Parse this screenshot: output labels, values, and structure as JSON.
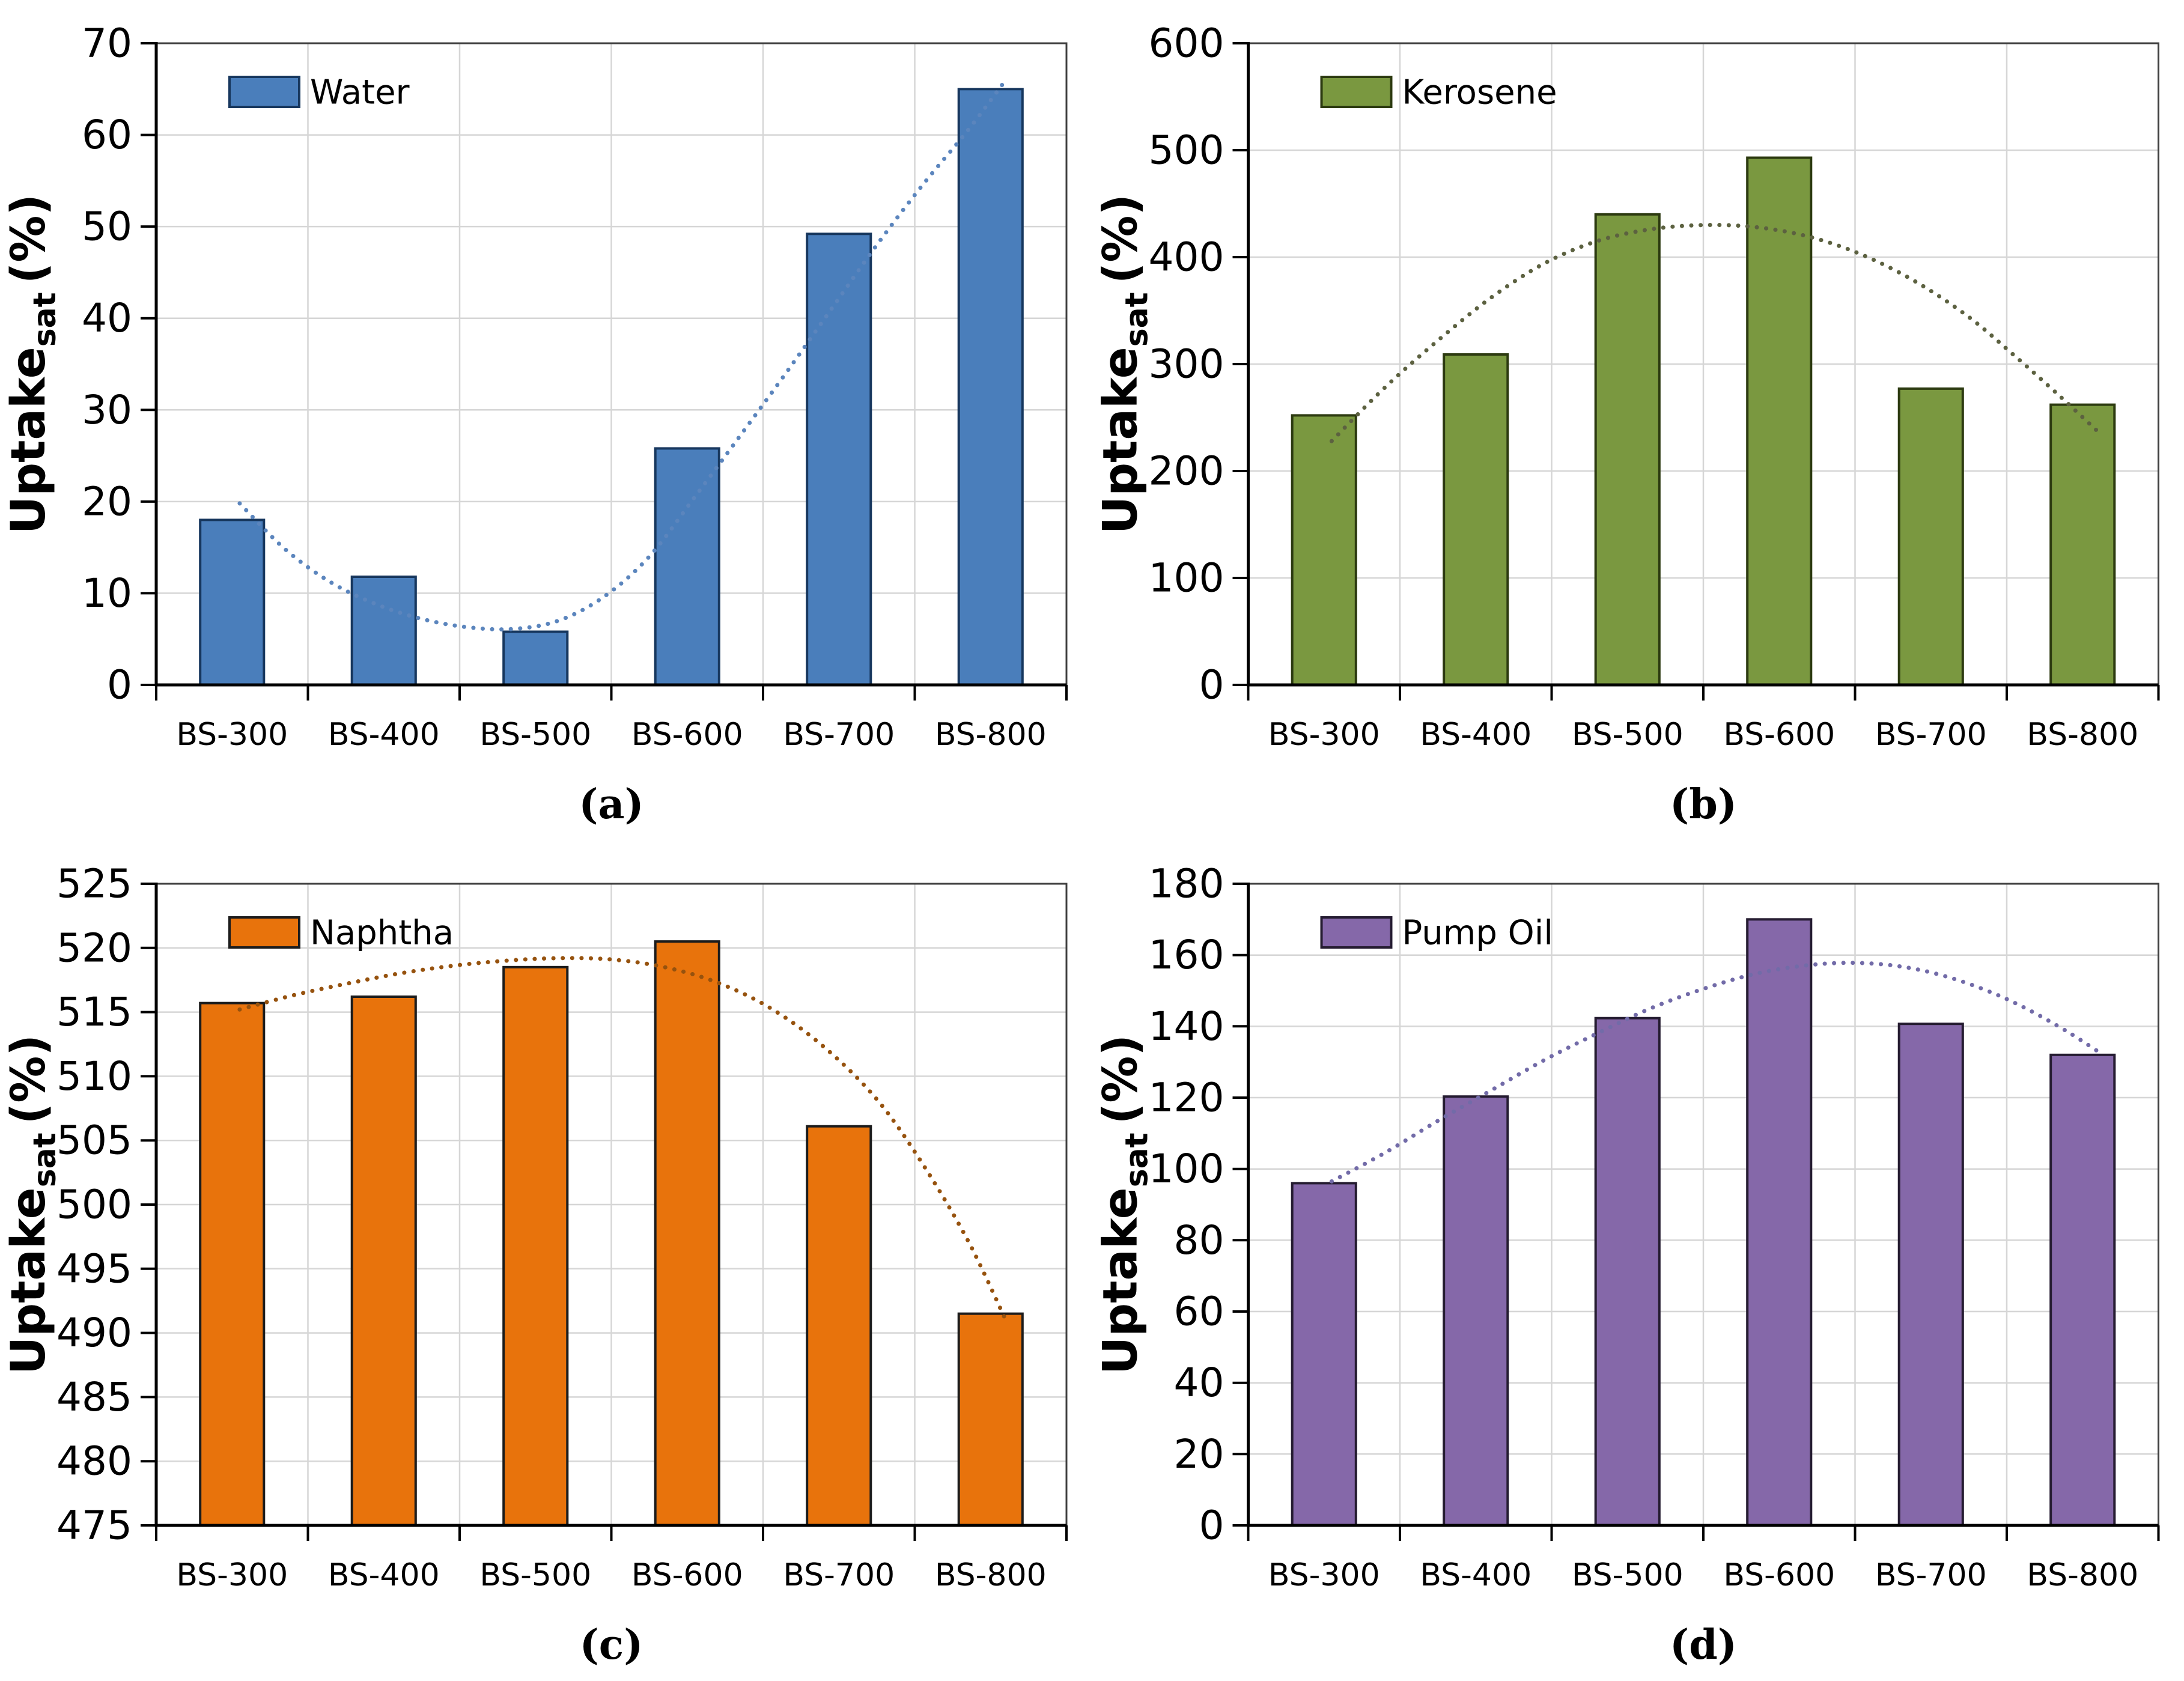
{
  "figure": {
    "background": "#FFFFFF",
    "grid_color": "#D6D6D6",
    "plot_border_color": "#3F3F3F",
    "axis_color": "#000000",
    "ylabel": {
      "word": "Uptake",
      "sub": "sat",
      "unit": "(%)"
    }
  },
  "chart_data": [
    {
      "id": "a",
      "type": "bar",
      "panel_label": "(a)",
      "legend_label": "Water",
      "bar_fill": "#4A7EBB",
      "bar_stroke": "#17375E",
      "trend_color": "#5B85BD",
      "categories": [
        "BS-300",
        "BS-400",
        "BS-500",
        "BS-600",
        "BS-700",
        "BS-800"
      ],
      "values": [
        18,
        11.8,
        5.8,
        25.8,
        49.2,
        65
      ],
      "ylim": [
        0,
        70
      ],
      "ytick_step": 10,
      "ytick_labels": [
        "0",
        "10",
        "20",
        "30",
        "40",
        "50",
        "60",
        "70"
      ],
      "ylabel": "Uptake_sat (%)",
      "legend_position": "top-left",
      "grid": true,
      "trend_points": [
        [
          0.55,
          19.8
        ],
        [
          0.85,
          14.8
        ],
        [
          1.15,
          11.2
        ],
        [
          1.45,
          8.8
        ],
        [
          1.75,
          7.2
        ],
        [
          2.05,
          6.3
        ],
        [
          2.35,
          6.1
        ],
        [
          2.65,
          7.0
        ],
        [
          2.95,
          9.6
        ],
        [
          3.25,
          14.0
        ],
        [
          3.55,
          20.5
        ],
        [
          3.85,
          27.2
        ],
        [
          4.15,
          34.0
        ],
        [
          4.45,
          41.0
        ],
        [
          4.75,
          48.0
        ],
        [
          5.05,
          54.5
        ],
        [
          5.35,
          60.5
        ],
        [
          5.6,
          66.0
        ]
      ]
    },
    {
      "id": "b",
      "type": "bar",
      "panel_label": "(b)",
      "legend_label": "Kerosene",
      "bar_fill": "#7A9840",
      "bar_stroke": "#2C3A10",
      "trend_color": "#5C6140",
      "categories": [
        "BS-300",
        "BS-400",
        "BS-500",
        "BS-600",
        "BS-700",
        "BS-800"
      ],
      "values": [
        252,
        309,
        440,
        493,
        277,
        262
      ],
      "ylim": [
        0,
        600
      ],
      "ytick_step": 100,
      "ytick_labels": [
        "0",
        "100",
        "200",
        "300",
        "400",
        "500",
        "600"
      ],
      "ylabel": "Uptake_sat (%)",
      "legend_position": "top-left",
      "grid": true,
      "trend_points": [
        [
          0.55,
          228
        ],
        [
          0.9,
          278
        ],
        [
          1.25,
          322
        ],
        [
          1.6,
          362
        ],
        [
          1.95,
          394
        ],
        [
          2.3,
          415
        ],
        [
          2.65,
          426
        ],
        [
          3.0,
          430
        ],
        [
          3.35,
          428
        ],
        [
          3.7,
          419
        ],
        [
          4.05,
          402
        ],
        [
          4.4,
          377
        ],
        [
          4.75,
          344
        ],
        [
          5.05,
          308
        ],
        [
          5.35,
          270
        ],
        [
          5.6,
          237
        ]
      ]
    },
    {
      "id": "c",
      "type": "bar",
      "panel_label": "(c)",
      "legend_label": "Naphtha",
      "bar_fill": "#E8730C",
      "bar_stroke": "#1C1C1C",
      "trend_color": "#96520E",
      "categories": [
        "BS-300",
        "BS-400",
        "BS-500",
        "BS-600",
        "BS-700",
        "BS-800"
      ],
      "values": [
        515.7,
        516.2,
        518.5,
        520.5,
        506.1,
        491.5
      ],
      "ylim": [
        475,
        525
      ],
      "ytick_step": 5,
      "ytick_labels": [
        "475",
        "480",
        "485",
        "490",
        "495",
        "500",
        "505",
        "510",
        "515",
        "520",
        "525"
      ],
      "ylabel": "Uptake_sat (%)",
      "legend_position": "top-left",
      "grid": true,
      "trend_points": [
        [
          0.55,
          515.2
        ],
        [
          0.9,
          516.3
        ],
        [
          1.25,
          517.2
        ],
        [
          1.6,
          518.0
        ],
        [
          1.95,
          518.6
        ],
        [
          2.3,
          519.0
        ],
        [
          2.65,
          519.2
        ],
        [
          3.0,
          519.1
        ],
        [
          3.35,
          518.5
        ],
        [
          3.7,
          517.3
        ],
        [
          4.05,
          515.3
        ],
        [
          4.4,
          512.3
        ],
        [
          4.75,
          508.2
        ],
        [
          5.05,
          503.2
        ],
        [
          5.35,
          497.2
        ],
        [
          5.6,
          491.0
        ]
      ]
    },
    {
      "id": "d",
      "type": "bar",
      "panel_label": "(d)",
      "legend_label": "Pump Oil",
      "bar_fill": "#8568A9",
      "bar_stroke": "#251C31",
      "trend_color": "#726BA8",
      "categories": [
        "BS-300",
        "BS-400",
        "BS-500",
        "BS-600",
        "BS-700",
        "BS-800"
      ],
      "values": [
        96,
        120.3,
        142.3,
        170,
        140.7,
        132
      ],
      "ylim": [
        0,
        180
      ],
      "ytick_step": 20,
      "ytick_labels": [
        "0",
        "20",
        "40",
        "60",
        "80",
        "100",
        "120",
        "140",
        "160",
        "180"
      ],
      "ylabel": "Uptake_sat (%)",
      "legend_position": "top-left",
      "grid": true,
      "trend_points": [
        [
          0.55,
          96.5
        ],
        [
          0.9,
          104.5
        ],
        [
          1.25,
          113.5
        ],
        [
          1.6,
          122.0
        ],
        [
          1.95,
          130.5
        ],
        [
          2.3,
          138.0
        ],
        [
          2.65,
          145.0
        ],
        [
          3.0,
          150.5
        ],
        [
          3.35,
          154.8
        ],
        [
          3.7,
          157.2
        ],
        [
          4.0,
          157.8
        ],
        [
          4.3,
          156.8
        ],
        [
          4.6,
          154.0
        ],
        [
          4.9,
          149.5
        ],
        [
          5.15,
          144.5
        ],
        [
          5.4,
          138.5
        ],
        [
          5.6,
          133.0
        ]
      ]
    }
  ]
}
